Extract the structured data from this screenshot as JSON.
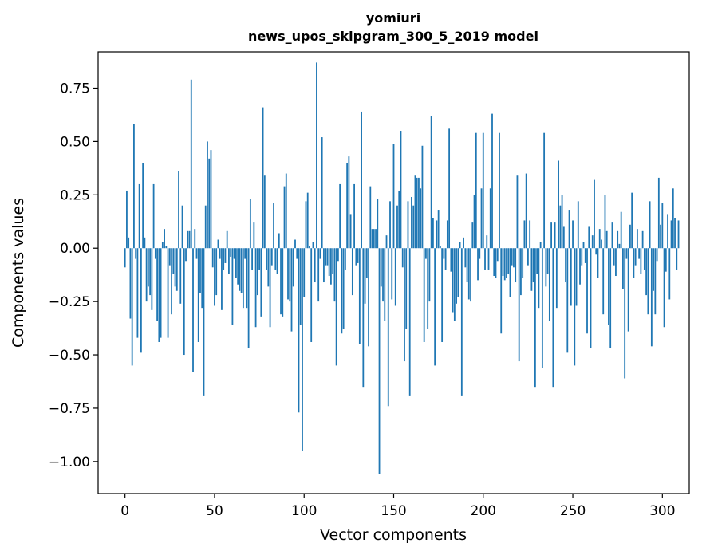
{
  "chart_data": {
    "type": "bar",
    "title": "yomiuri",
    "subtitle": "news_upos_skipgram_300_5_2019 model",
    "xlabel": "Vector components",
    "ylabel": "Components values",
    "xlim": [
      -15,
      315
    ],
    "ylim": [
      -1.15,
      0.92
    ],
    "xticks": [
      0,
      50,
      100,
      150,
      200,
      250,
      300
    ],
    "xtick_labels": [
      "0",
      "50",
      "100",
      "150",
      "200",
      "250",
      "300"
    ],
    "yticks": [
      -1.0,
      -0.75,
      -0.5,
      -0.25,
      0.0,
      0.25,
      0.5,
      0.75
    ],
    "ytick_labels": [
      "−1.00",
      "−0.75",
      "−0.50",
      "−0.25",
      "0.00",
      "0.25",
      "0.50",
      "0.75"
    ],
    "bar_color": "#1f77b4",
    "grid": false,
    "values": [
      -0.09,
      0.27,
      0.05,
      -0.33,
      -0.55,
      0.58,
      -0.05,
      -0.42,
      0.3,
      -0.49,
      0.4,
      0.05,
      -0.25,
      -0.18,
      -0.22,
      -0.29,
      0.3,
      -0.05,
      -0.34,
      -0.44,
      -0.42,
      0.03,
      0.09,
      0.01,
      -0.42,
      -0.08,
      -0.31,
      -0.12,
      -0.18,
      -0.2,
      0.36,
      -0.26,
      0.2,
      -0.5,
      -0.06,
      0.08,
      0.08,
      0.79,
      -0.58,
      0.09,
      -0.05,
      -0.44,
      -0.21,
      -0.28,
      -0.69,
      0.2,
      0.5,
      0.42,
      0.46,
      -0.09,
      -0.27,
      -0.22,
      0.04,
      -0.05,
      -0.29,
      -0.1,
      -0.07,
      0.08,
      -0.12,
      -0.04,
      -0.36,
      -0.05,
      -0.14,
      -0.17,
      -0.2,
      -0.21,
      -0.28,
      -0.05,
      -0.28,
      -0.47,
      0.23,
      -0.1,
      0.12,
      -0.37,
      -0.22,
      -0.1,
      -0.32,
      0.66,
      0.34,
      -0.1,
      -0.18,
      -0.37,
      -0.08,
      0.21,
      -0.1,
      -0.12,
      0.07,
      -0.31,
      -0.32,
      0.29,
      0.35,
      -0.24,
      -0.25,
      -0.39,
      -0.18,
      0.04,
      -0.05,
      -0.77,
      -0.36,
      -0.95,
      -0.23,
      0.22,
      0.26,
      0.01,
      -0.44,
      0.03,
      -0.16,
      0.87,
      -0.25,
      -0.05,
      0.52,
      -0.16,
      -0.08,
      -0.08,
      -0.13,
      -0.17,
      -0.12,
      -0.25,
      -0.55,
      -0.06,
      0.3,
      -0.4,
      -0.38,
      -0.1,
      0.4,
      0.43,
      0.16,
      -0.22,
      0.3,
      -0.08,
      -0.07,
      -0.45,
      0.64,
      -0.65,
      -0.26,
      -0.14,
      -0.46,
      0.29,
      0.09,
      0.09,
      0.09,
      0.23,
      -1.06,
      -0.18,
      -0.25,
      -0.34,
      0.06,
      -0.74,
      0.22,
      -0.24,
      0.49,
      -0.27,
      0.2,
      0.27,
      0.55,
      -0.09,
      -0.53,
      -0.38,
      0.22,
      -0.69,
      0.24,
      0.2,
      0.34,
      0.33,
      0.33,
      0.28,
      0.48,
      -0.44,
      -0.05,
      -0.38,
      -0.25,
      0.62,
      0.14,
      -0.55,
      0.13,
      0.18,
      0.01,
      -0.44,
      -0.05,
      -0.1,
      0.13,
      0.56,
      -0.11,
      -0.3,
      -0.34,
      -0.26,
      -0.23,
      0.03,
      -0.69,
      0.05,
      -0.09,
      -0.16,
      -0.24,
      -0.25,
      0.12,
      0.25,
      0.54,
      -0.15,
      -0.05,
      0.28,
      0.54,
      -0.1,
      0.06,
      -0.1,
      0.28,
      0.63,
      -0.13,
      -0.14,
      -0.06,
      0.54,
      -0.4,
      -0.13,
      -0.15,
      -0.14,
      -0.12,
      -0.23,
      -0.08,
      -0.09,
      -0.16,
      0.34,
      -0.53,
      -0.22,
      -0.14,
      0.13,
      0.35,
      -0.08,
      0.13,
      -0.2,
      -0.16,
      -0.65,
      -0.12,
      -0.28,
      0.03,
      -0.56,
      0.54,
      -0.18,
      -0.12,
      -0.34,
      0.12,
      -0.65,
      0.12,
      -0.28,
      0.41,
      0.2,
      0.25,
      0.1,
      -0.16,
      -0.49,
      0.18,
      -0.27,
      0.13,
      -0.55,
      -0.27,
      0.22,
      -0.17,
      -0.08,
      0.03,
      -0.07,
      -0.4,
      0.1,
      -0.47,
      0.06,
      0.32,
      -0.03,
      -0.14,
      0.09,
      0.04,
      -0.31,
      0.25,
      0.08,
      -0.36,
      -0.47,
      0.12,
      -0.08,
      -0.13,
      0.08,
      0.02,
      0.17,
      -0.19,
      -0.61,
      -0.05,
      -0.39,
      0.11,
      0.26,
      -0.14,
      -0.08,
      0.09,
      -0.05,
      -0.12,
      0.08,
      -0.1,
      -0.22,
      -0.31,
      0.22,
      -0.46,
      -0.2,
      -0.31,
      -0.06,
      0.33,
      0.11,
      0.21,
      -0.37,
      -0.11,
      0.16,
      -0.24,
      0.13,
      0.28,
      0.14,
      -0.1,
      0.13
    ]
  }
}
